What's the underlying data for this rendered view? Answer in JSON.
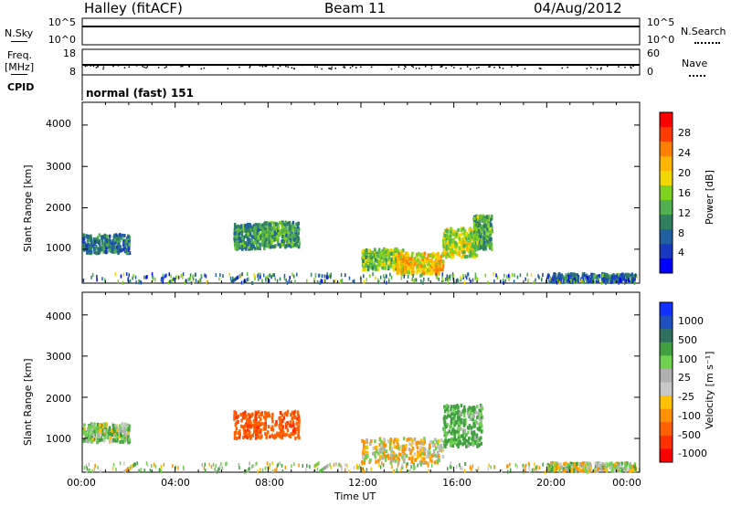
{
  "header": {
    "radar": "Halley (fitACF)",
    "beam": "Beam 11",
    "date": "04/Aug/2012"
  },
  "panels": {
    "noise": {
      "left_label": "N.Sky",
      "right_label": "N.Search",
      "left_ticks": [
        "10^5",
        "10^0"
      ],
      "right_ticks": [
        "10^5",
        "10^0"
      ]
    },
    "freq": {
      "left_label": "Freq.",
      "left_unit": "[MHz]",
      "right_label": "Nave",
      "left_ticks": [
        "18",
        "8"
      ],
      "right_ticks": [
        "60",
        "0"
      ]
    },
    "cpid": {
      "label": "CPID",
      "value": "normal (fast) 151"
    }
  },
  "colorbars": {
    "power": {
      "label": "Power [dB]",
      "ticks": [
        "28",
        "24",
        "20",
        "16",
        "12",
        "8",
        "4"
      ],
      "colors": [
        "#ff0000",
        "#ff3c00",
        "#ff8000",
        "#ffb400",
        "#f2d800",
        "#80d020",
        "#50b050",
        "#308060",
        "#2060a0",
        "#1838c0",
        "#0000ff"
      ]
    },
    "velocity": {
      "label": "Velocity [m s⁻¹]",
      "ticks": [
        "1000",
        "500",
        "100",
        "25",
        "-25",
        "-100",
        "-500",
        "-1000"
      ],
      "colors": [
        "#1030ff",
        "#2050c0",
        "#307060",
        "#40a040",
        "#70d050",
        "#b0b0b0",
        "#c8c8c8",
        "#ffc000",
        "#ff9000",
        "#ff6000",
        "#ff3000",
        "#ff0000"
      ]
    }
  },
  "chart_data": {
    "type": "heatmap",
    "x_axis": {
      "label": "Time UT",
      "ticks": [
        "00:00",
        "04:00",
        "08:00",
        "12:00",
        "16:00",
        "20:00",
        "00:00"
      ],
      "range_hours": [
        0,
        24
      ]
    },
    "y_axis": {
      "label": "Slant Range [km]",
      "ticks": [
        1000,
        2000,
        3000,
        4000
      ],
      "range": [
        180,
        4550
      ]
    },
    "power_patches": [
      {
        "t0": 0.0,
        "t1": 2.0,
        "r0": 900,
        "r1": 1350,
        "level": 8
      },
      {
        "t0": 6.5,
        "t1": 7.8,
        "r0": 1000,
        "r1": 1600,
        "level": 10
      },
      {
        "t0": 7.8,
        "t1": 9.3,
        "r0": 1050,
        "r1": 1650,
        "level": 11
      },
      {
        "t0": 12.0,
        "t1": 13.8,
        "r0": 500,
        "r1": 1000,
        "level": 14
      },
      {
        "t0": 13.5,
        "t1": 15.5,
        "r0": 400,
        "r1": 900,
        "level": 20
      },
      {
        "t0": 15.5,
        "t1": 17.0,
        "r0": 800,
        "r1": 1500,
        "level": 16
      },
      {
        "t0": 16.8,
        "t1": 17.6,
        "r0": 1000,
        "r1": 1800,
        "level": 12
      },
      {
        "t0": 20.0,
        "t1": 23.8,
        "r0": 200,
        "r1": 400,
        "level": 6
      }
    ],
    "velocity_patches": [
      {
        "t0": 0.0,
        "t1": 2.0,
        "r0": 900,
        "r1": 1350,
        "v": 60
      },
      {
        "t0": 6.5,
        "t1": 9.3,
        "r0": 1000,
        "r1": 1650,
        "v": -200
      },
      {
        "t0": 12.0,
        "t1": 15.5,
        "r0": 400,
        "r1": 1000,
        "v": 0
      },
      {
        "t0": 15.5,
        "t1": 17.2,
        "r0": 800,
        "r1": 1800,
        "v": 120
      },
      {
        "t0": 20.0,
        "t1": 23.8,
        "r0": 200,
        "r1": 400,
        "v": 40
      }
    ],
    "noise_sky": 100000,
    "frequency_mhz": 11,
    "nave": 30
  }
}
